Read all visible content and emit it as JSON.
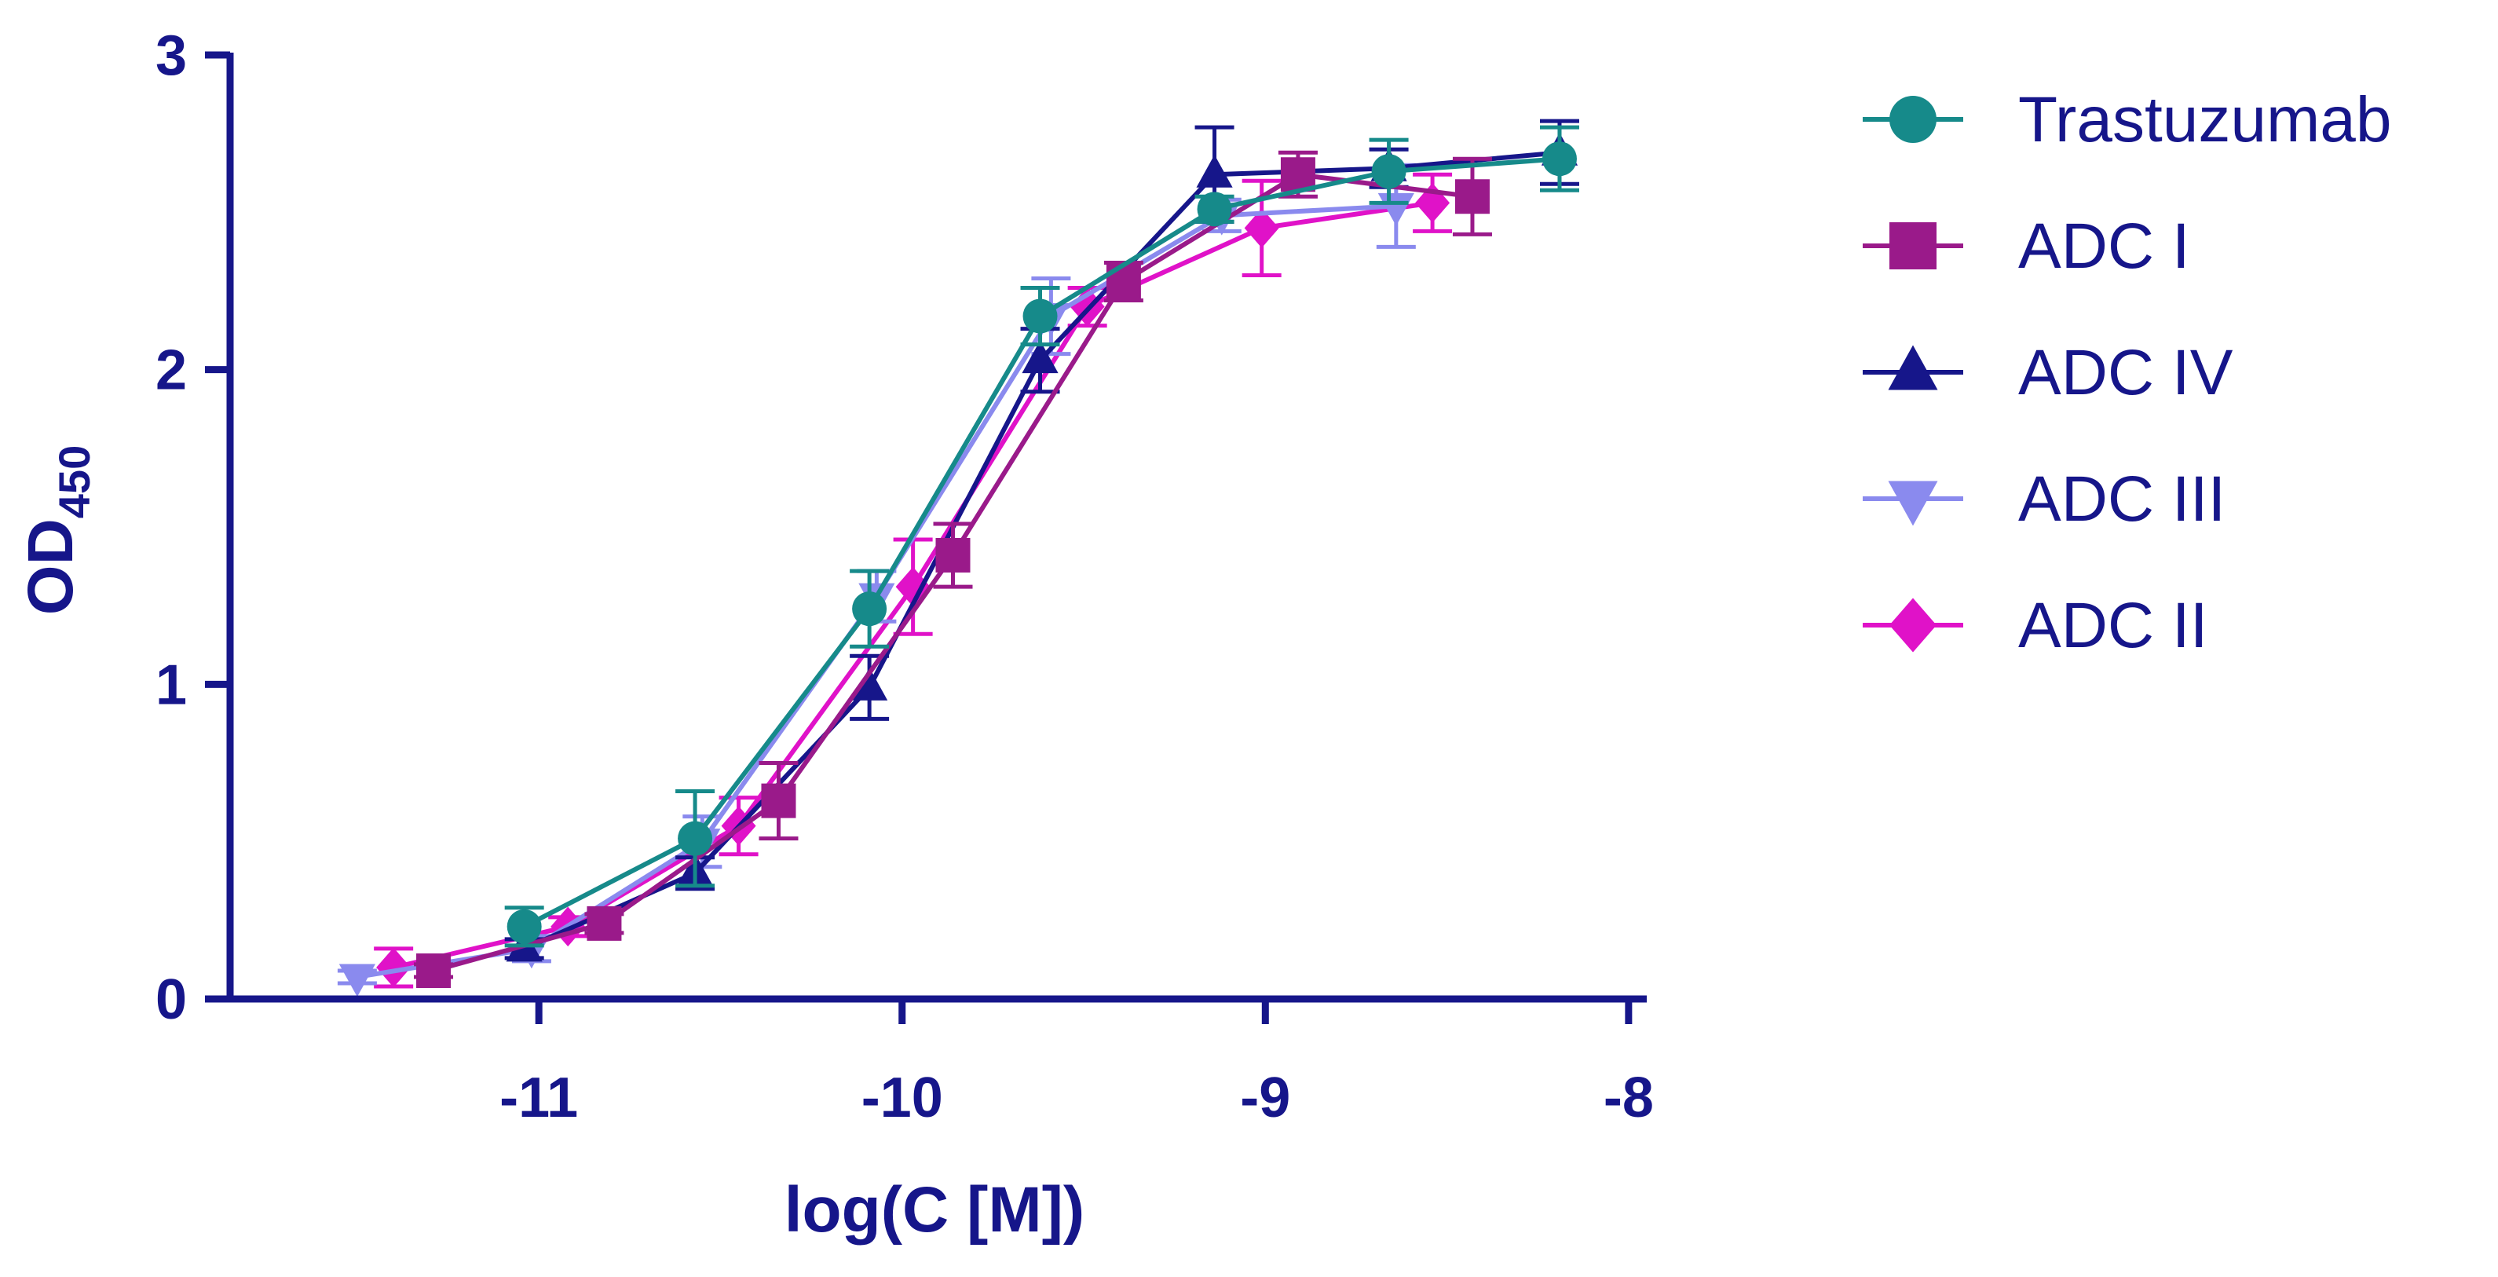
{
  "chart_data": {
    "type": "line",
    "xlabel": "log(C [M])",
    "ylabel_main": "OD",
    "ylabel_sub": "450",
    "xlim": [
      -11.85,
      -7.95
    ],
    "ylim": [
      0,
      3
    ],
    "x_ticks": [
      -11,
      -10,
      -9,
      -8
    ],
    "x_tick_labels": [
      "-11",
      "-10",
      "-9",
      "-8"
    ],
    "y_ticks": [
      0,
      1,
      2,
      3
    ],
    "y_tick_labels": [
      "0",
      "1",
      "2",
      "3"
    ],
    "legend_position": "right",
    "axis_color": "#16168a",
    "series": [
      {
        "name": "Trastuzumab",
        "color": "#168a8a",
        "marker": "circle",
        "x": [
          -11.04,
          -10.57,
          -10.09,
          -9.62,
          -9.14,
          -8.66,
          -8.19
        ],
        "y": [
          0.23,
          0.51,
          1.24,
          2.17,
          2.51,
          2.63,
          2.67
        ],
        "err": [
          0.06,
          0.15,
          0.12,
          0.09,
          0.04,
          0.1,
          0.1
        ]
      },
      {
        "name": "ADC I",
        "color": "#9a1a8a",
        "marker": "square",
        "x": [
          -11.29,
          -10.82,
          -10.34,
          -9.86,
          -9.39,
          -8.91,
          -8.43
        ],
        "y": [
          0.09,
          0.24,
          0.63,
          1.41,
          2.28,
          2.62,
          2.55
        ],
        "err": [
          0.02,
          0.03,
          0.12,
          0.1,
          0.06,
          0.07,
          0.12
        ]
      },
      {
        "name": "ADC IV",
        "color": "#16168a",
        "marker": "triangle-up",
        "x": [
          -11.04,
          -10.57,
          -10.09,
          -9.62,
          -9.14,
          -8.66,
          -8.19
        ],
        "y": [
          0.16,
          0.4,
          0.99,
          2.03,
          2.62,
          2.64,
          2.69
        ],
        "err": [
          0.03,
          0.05,
          0.1,
          0.1,
          0.15,
          0.06,
          0.1
        ]
      },
      {
        "name": "ADC III",
        "color": "#8a8aee",
        "marker": "triangle-down",
        "x": [
          -11.5,
          -11.02,
          -10.55,
          -10.07,
          -9.59,
          -9.12,
          -8.64
        ],
        "y": [
          0.07,
          0.16,
          0.5,
          1.28,
          2.17,
          2.49,
          2.52
        ],
        "err": [
          0.02,
          0.04,
          0.08,
          0.08,
          0.12,
          0.05,
          0.13
        ]
      },
      {
        "name": "ADC II",
        "color": "#e012c8",
        "marker": "diamond",
        "x": [
          -11.4,
          -10.92,
          -10.45,
          -9.97,
          -9.49,
          -9.01,
          -8.54
        ],
        "y": [
          0.1,
          0.23,
          0.55,
          1.31,
          2.2,
          2.45,
          2.53
        ],
        "err": [
          0.06,
          0.03,
          0.09,
          0.15,
          0.06,
          0.15,
          0.09
        ]
      }
    ]
  }
}
